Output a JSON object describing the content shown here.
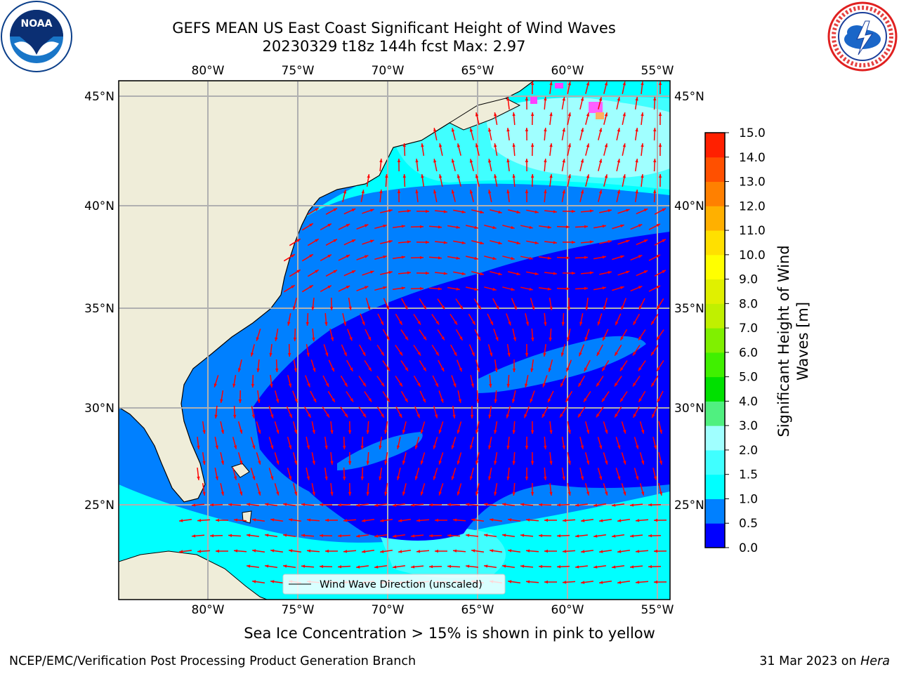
{
  "header": {
    "title_line1": "GEFS MEAN US East Coast Significant Height of Wind Waves",
    "title_line2": "20230329 t18z 144h fcst   Max: 2.97"
  },
  "logos": {
    "left": "noaa-logo",
    "right": "nws-logo",
    "right_ring_text": "NATIONAL WEATHER SERVICE"
  },
  "map": {
    "lon_labels": [
      "80°W",
      "75°W",
      "70°W",
      "65°W",
      "60°W",
      "55°W"
    ],
    "lat_labels": [
      "45°N",
      "40°N",
      "35°N",
      "30°N",
      "25°N"
    ],
    "legend_label": "Wind Wave Direction (unscaled)",
    "colors": {
      "land": "#efedd9",
      "arrow": "#ff0000",
      "grid": "#b0b0b0"
    }
  },
  "colorbar": {
    "label_line1": "Significant Height of Wind",
    "label_line2": "Waves [m]",
    "ticks": [
      "0.0",
      "0.5",
      "1.0",
      "1.5",
      "2.0",
      "3.0",
      "4.0",
      "5.0",
      "6.0",
      "7.0",
      "8.0",
      "9.0",
      "10.0",
      "11.0",
      "12.0",
      "13.0",
      "14.0",
      "15.0"
    ],
    "colors": [
      "#0000ff",
      "#0080ff",
      "#00ffff",
      "#40ffff",
      "#a0ffff",
      "#50f080",
      "#00e000",
      "#40f000",
      "#80f000",
      "#c0f000",
      "#e0f000",
      "#ffff00",
      "#ffe000",
      "#ffb000",
      "#ff8000",
      "#ff5000",
      "#ff2000"
    ]
  },
  "note": "Sea Ice Concentration > 15% is shown in pink to yellow",
  "footer": {
    "left": "NCEP/EMC/Verification Post Processing Product Generation Branch",
    "right_prefix": "31 Mar 2023 on ",
    "right_host": "Hera"
  }
}
